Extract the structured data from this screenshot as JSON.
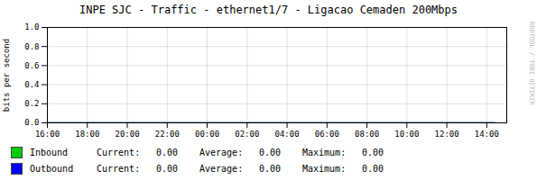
{
  "chart_data": {
    "type": "line",
    "title": "INPE SJC - Traffic - ethernet1/7 - Ligacao Cemaden 200Mbps",
    "ylabel": "bits per second",
    "xlim": [
      0,
      23
    ],
    "xticks": [
      {
        "value": 0,
        "label": "16:00"
      },
      {
        "value": 2,
        "label": "18:00"
      },
      {
        "value": 4,
        "label": "20:00"
      },
      {
        "value": 6,
        "label": "22:00"
      },
      {
        "value": 8,
        "label": "00:00"
      },
      {
        "value": 10,
        "label": "02:00"
      },
      {
        "value": 12,
        "label": "04:00"
      },
      {
        "value": 14,
        "label": "06:00"
      },
      {
        "value": 16,
        "label": "08:00"
      },
      {
        "value": 18,
        "label": "10:00"
      },
      {
        "value": 20,
        "label": "12:00"
      },
      {
        "value": 22,
        "label": "14:00"
      }
    ],
    "ylim": [
      0.0,
      1.0
    ],
    "yticks": [
      {
        "value": 0,
        "label": "0.0"
      },
      0.2,
      0.4,
      0.6,
      0.8,
      {
        "value": 1,
        "label": "1.0"
      }
    ],
    "grid": true,
    "legend": "bottom",
    "stat_names": [
      "Current:",
      "Average:",
      "Maximum:"
    ],
    "series": [
      {
        "name": "Inbound",
        "color": "#00cc00",
        "x": [
          0,
          22.4
        ],
        "values": [
          0,
          0
        ],
        "stats": [
          0,
          0,
          0
        ],
        "stat_labels": [
          "0.00",
          "0.00",
          "0.00"
        ]
      },
      {
        "name": "Outbound",
        "color": "#0000ff",
        "x": [
          0,
          22.4
        ],
        "values": [
          0,
          0
        ],
        "stats": [
          0,
          0,
          0
        ],
        "stat_labels": [
          "0.00",
          "0.00",
          "0.00"
        ]
      }
    ],
    "annotations": [
      {
        "text": "RRDTOOL / TOBI OETIKER"
      }
    ]
  }
}
